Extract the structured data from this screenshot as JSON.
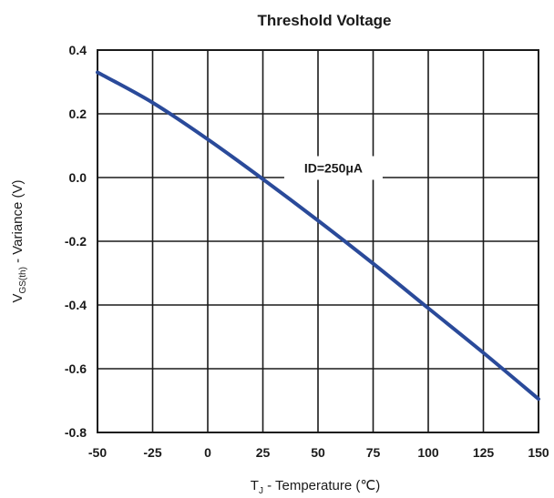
{
  "chart_data": {
    "type": "line",
    "title": "Threshold Voltage",
    "xlabel": "Tⱼ - Temperature (℃)",
    "ylabel": "Vₜₛ₍ₜₕ₎ - Variance (V)",
    "xlabel_main": "T",
    "xlabel_sub": "J",
    "xlabel_rest": " - Temperature (℃)",
    "ylabel_main": "V",
    "ylabel_sub": "GS(th)",
    "ylabel_rest": " - Variance (V)",
    "xlim": [
      -50,
      150
    ],
    "ylim": [
      -0.8,
      0.4
    ],
    "x_ticks": [
      -50,
      -25,
      0,
      25,
      50,
      75,
      100,
      125,
      150
    ],
    "x_tick_labels": [
      "-50",
      "-25",
      "0",
      "25",
      "50",
      "75",
      "100",
      "125",
      "150"
    ],
    "y_ticks": [
      0.4,
      0.2,
      0.0,
      -0.2,
      -0.4,
      -0.6,
      -0.8
    ],
    "y_tick_labels": [
      "0.4",
      "0.2",
      "0.0",
      "-0.2",
      "-0.4",
      "-0.6",
      "-0.8"
    ],
    "grid": true,
    "line_color": "#2a4a9a",
    "annotation": {
      "text": "ID=250μA",
      "x": 57,
      "y": 0.03
    },
    "series": [
      {
        "x": [
          -50,
          -25,
          0,
          25,
          50,
          75,
          100,
          125,
          150
        ],
        "y": [
          0.33,
          0.235,
          0.12,
          -0.005,
          -0.135,
          -0.27,
          -0.41,
          -0.55,
          -0.695
        ]
      }
    ]
  }
}
